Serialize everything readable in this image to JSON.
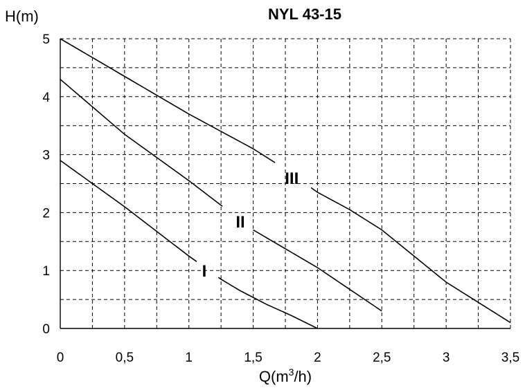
{
  "chart_data": {
    "type": "line",
    "title": "NYL 43-15",
    "ylabel": "H(m)",
    "xlabel": {
      "base": "Q(m",
      "sup": "3",
      "tail": "/h)"
    },
    "xlim": [
      0,
      3.5
    ],
    "ylim": [
      0,
      5
    ],
    "x_ticks": [
      "0",
      "0,5",
      "1",
      "1,5",
      "2",
      "2,5",
      "3",
      "3,5"
    ],
    "x_tick_values": [
      0,
      0.5,
      1,
      1.5,
      2,
      2.5,
      3,
      3.5
    ],
    "y_ticks": [
      "0",
      "1",
      "2",
      "3",
      "4",
      "5"
    ],
    "y_tick_values": [
      0,
      1,
      2,
      3,
      4,
      5
    ],
    "grid": true,
    "grid_step_x": 0.25,
    "grid_step_y": 0.5,
    "series": [
      {
        "label": "I",
        "label_at": [
          1.12,
          1.0
        ],
        "gap": [
          1.06,
          1.23
        ],
        "points": [
          [
            0,
            2.9
          ],
          [
            0.5,
            2.1
          ],
          [
            1.0,
            1.25
          ],
          [
            1.25,
            0.85
          ],
          [
            1.4,
            0.65
          ],
          [
            1.6,
            0.42
          ],
          [
            1.8,
            0.22
          ],
          [
            2.0,
            0.0
          ]
        ]
      },
      {
        "label": "II",
        "label_at": [
          1.4,
          1.85
        ],
        "gap": [
          1.26,
          1.5
        ],
        "points": [
          [
            0,
            4.3
          ],
          [
            0.5,
            3.35
          ],
          [
            1.0,
            2.55
          ],
          [
            1.5,
            1.7
          ],
          [
            2.0,
            1.05
          ],
          [
            2.5,
            0.3
          ]
        ]
      },
      {
        "label": "III",
        "label_at": [
          1.8,
          2.6
        ],
        "gap": [
          1.67,
          1.95
        ],
        "points": [
          [
            0,
            5.0
          ],
          [
            0.5,
            4.35
          ],
          [
            1.0,
            3.7
          ],
          [
            1.5,
            3.1
          ],
          [
            1.75,
            2.75
          ],
          [
            2.0,
            2.35
          ],
          [
            2.25,
            2.05
          ],
          [
            2.5,
            1.7
          ],
          [
            2.75,
            1.25
          ],
          [
            3.0,
            0.8
          ],
          [
            3.25,
            0.45
          ],
          [
            3.5,
            0.1
          ]
        ]
      }
    ]
  }
}
